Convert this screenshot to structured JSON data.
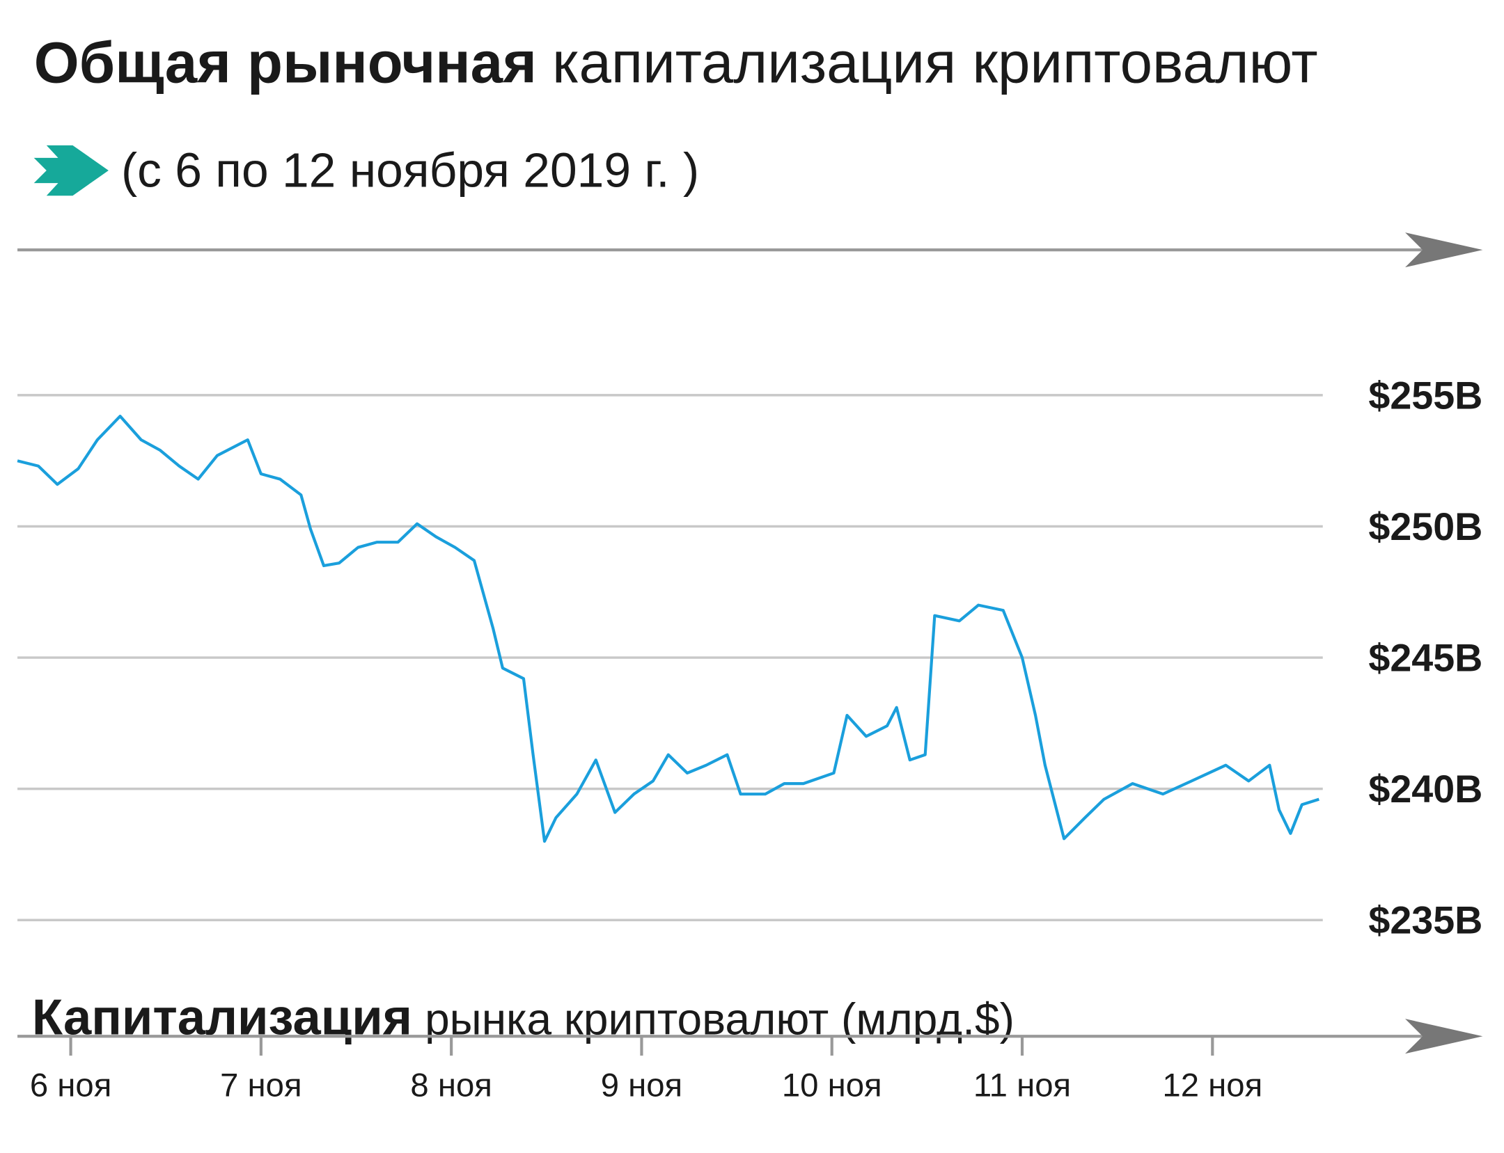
{
  "chart_data": {
    "type": "line",
    "title": {
      "bold": "Общая рыночная",
      "regular": "капитализация криптовалют"
    },
    "subtitle": "(с 6 по 12 ноября 2019 г. )",
    "x_label": {
      "bold": "Капитализация",
      "regular": "рынка криптовалют (млрд.$)"
    },
    "color": "#1a9fdc",
    "x": [
      5.72,
      5.83,
      5.93,
      6.04,
      6.14,
      6.26,
      6.37,
      6.47,
      6.57,
      6.67,
      6.77,
      6.93,
      7.0,
      7.1,
      7.21,
      7.26,
      7.33,
      7.41,
      7.51,
      7.61,
      7.72,
      7.82,
      7.92,
      8.02,
      8.12,
      8.22,
      8.27,
      8.38,
      8.43,
      8.49,
      8.55,
      8.66,
      8.76,
      8.86,
      8.96,
      9.06,
      9.14,
      9.24,
      9.34,
      9.45,
      9.52,
      9.65,
      9.75,
      9.85,
      10.01,
      10.08,
      10.18,
      10.29,
      10.34,
      10.41,
      10.49,
      10.54,
      10.67,
      10.77,
      10.9,
      11.0,
      11.07,
      11.12,
      11.22,
      11.33,
      11.43,
      11.58,
      11.74,
      11.89,
      12.07,
      12.19,
      12.3,
      12.35,
      12.41,
      12.47,
      12.56
    ],
    "values": [
      252.5,
      252.3,
      251.6,
      252.2,
      253.3,
      254.2,
      253.3,
      252.9,
      252.3,
      251.8,
      252.7,
      253.3,
      252.0,
      251.8,
      251.2,
      249.9,
      248.5,
      248.6,
      249.2,
      249.4,
      249.4,
      250.1,
      249.6,
      249.2,
      248.7,
      246.1,
      244.6,
      244.2,
      241.3,
      238.0,
      238.9,
      239.8,
      241.1,
      239.1,
      239.8,
      240.3,
      241.3,
      240.6,
      240.9,
      241.3,
      239.8,
      239.8,
      240.2,
      240.2,
      240.6,
      242.8,
      242.0,
      242.4,
      243.1,
      241.1,
      241.3,
      246.6,
      246.4,
      247.0,
      246.8,
      245.0,
      242.8,
      240.9,
      238.1,
      238.9,
      239.6,
      240.2,
      239.8,
      240.3,
      240.9,
      240.3,
      240.9,
      239.2,
      238.3,
      239.4,
      239.6
    ],
    "xlim": [
      5.72,
      13.42
    ],
    "xticks": [
      {
        "value": 6,
        "label": "6 ноя"
      },
      {
        "value": 7,
        "label": "7 ноя"
      },
      {
        "value": 8,
        "label": "8 ноя"
      },
      {
        "value": 9,
        "label": "9 ноя"
      },
      {
        "value": 10,
        "label": "10 ноя"
      },
      {
        "value": 11,
        "label": "11 ноя"
      },
      {
        "value": 12,
        "label": "12 ноя"
      }
    ],
    "ylim": [
      235,
      255
    ],
    "yticks": [
      {
        "value": 255,
        "label": "$255B"
      },
      {
        "value": 250,
        "label": "$250B"
      },
      {
        "value": 245,
        "label": "$245B"
      },
      {
        "value": 240,
        "label": "$240B"
      },
      {
        "value": 235,
        "label": "$235B"
      }
    ],
    "grid": true
  }
}
